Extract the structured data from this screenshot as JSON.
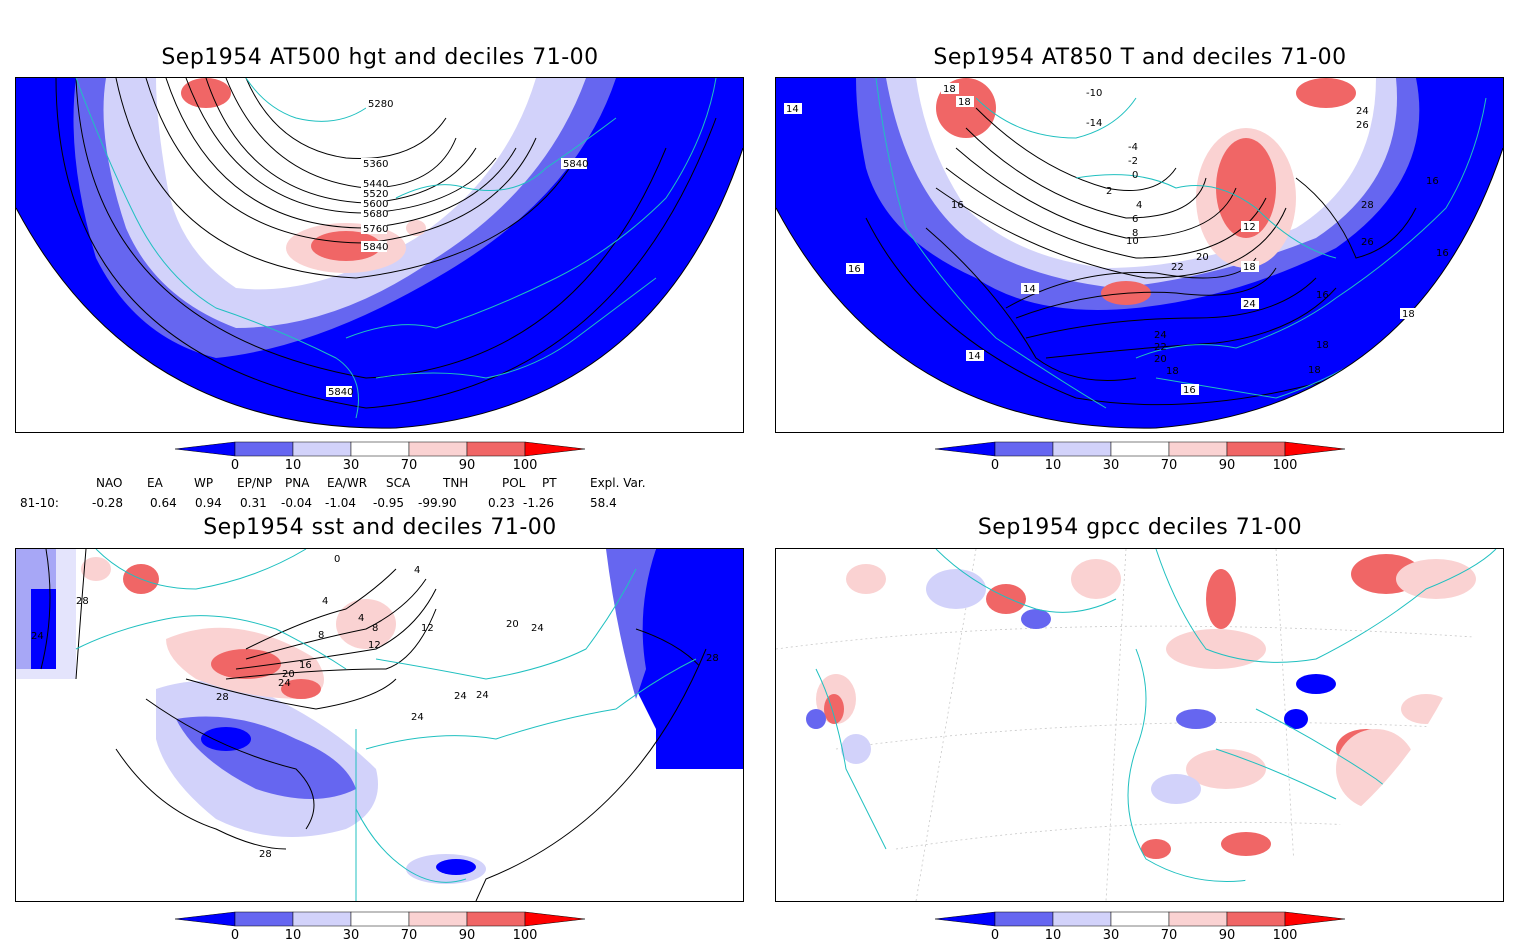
{
  "panels": [
    {
      "title": "Sep1954 AT500 hgt and deciles 71-00",
      "contour_labels": [
        "5280",
        "5360",
        "5440",
        "5520",
        "5600",
        "5680",
        "5760",
        "5840",
        "5840",
        "5840"
      ]
    },
    {
      "title": "Sep1954 AT850 T and deciles 71-00",
      "contour_labels": [
        "14",
        "18",
        "18",
        "-10",
        "-14",
        "-4",
        "-2",
        "0",
        "2",
        "4",
        "6",
        "8",
        "10",
        "12",
        "16",
        "16",
        "16",
        "14",
        "14",
        "20",
        "22",
        "24",
        "26",
        "28",
        "26",
        "24",
        "18",
        "18",
        "16",
        "16",
        "24",
        "22",
        "20",
        "18",
        "18",
        "16",
        "18",
        "16"
      ]
    },
    {
      "title": "Sep1954 sst and deciles 71-00",
      "contour_labels": [
        "28",
        "24",
        "0",
        "4",
        "4",
        "8",
        "4",
        "8",
        "12",
        "12",
        "16",
        "20",
        "24",
        "28",
        "24",
        "24",
        "24",
        "20",
        "24",
        "28",
        "28"
      ]
    },
    {
      "title": "Sep1954 gpcc deciles 71-00",
      "contour_labels": []
    }
  ],
  "colorbar": {
    "ticks": [
      "0",
      "10",
      "30",
      "70",
      "90",
      "100"
    ],
    "colors": [
      "#0000ff",
      "#6666f0",
      "#d2d2fa",
      "#ffffff",
      "#fad2d2",
      "#f06666",
      "#ff0000"
    ]
  },
  "indices": {
    "row_label": "81-10:",
    "names": [
      "NAO",
      "EA",
      "WP",
      "EP/NP",
      "PNA",
      "EA/WR",
      "SCA",
      "TNH",
      "POL",
      "PT",
      "Expl. Var."
    ],
    "values": [
      "-0.28",
      "0.64",
      "0.94",
      "0.31",
      "-0.04",
      "-1.04",
      "-0.95",
      "-99.90",
      "0.23",
      "-1.26",
      "58.4"
    ]
  }
}
